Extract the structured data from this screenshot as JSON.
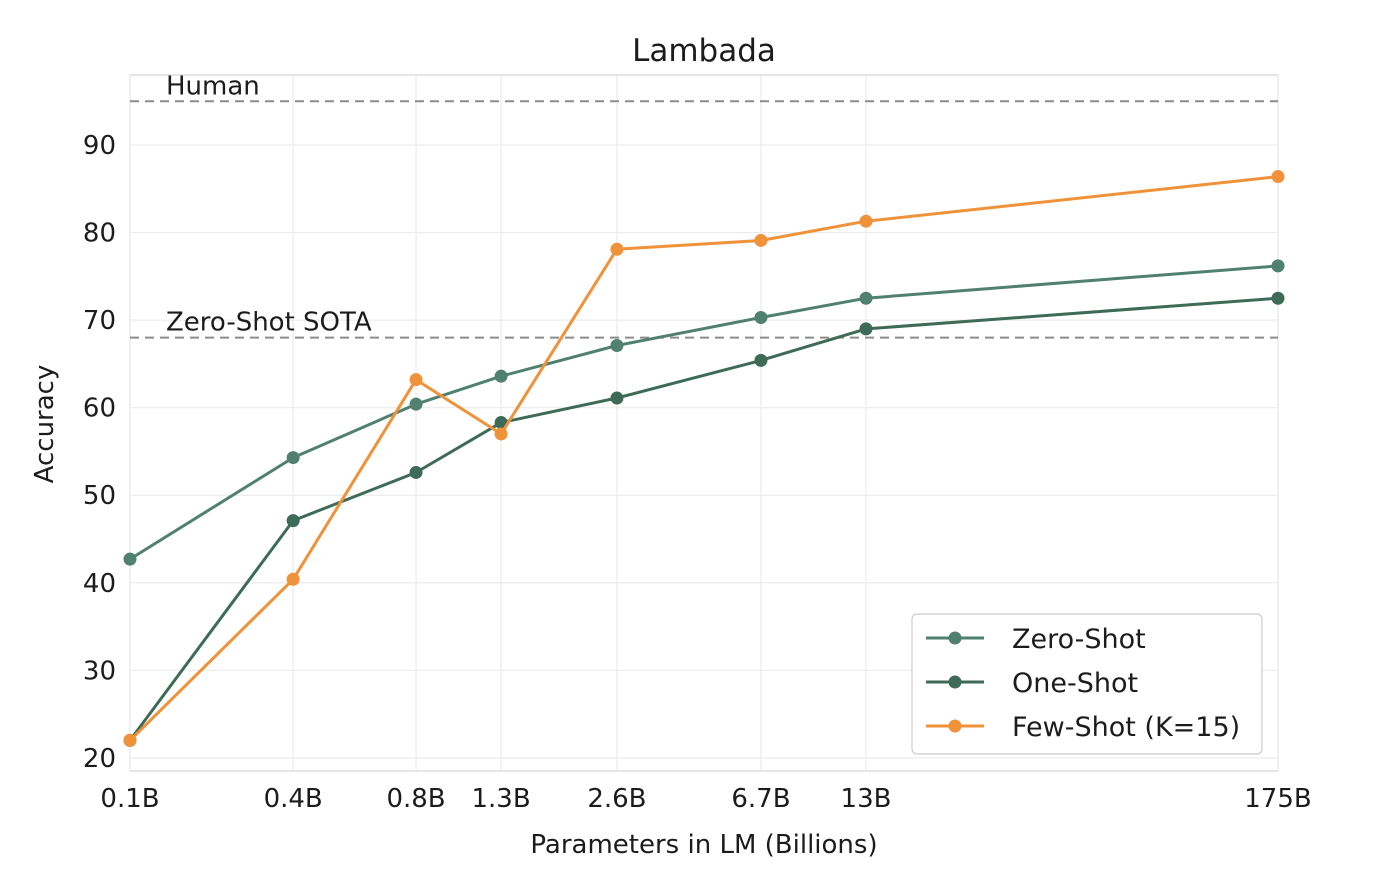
{
  "chart_data": {
    "type": "line",
    "title": "Lambada",
    "xlabel": "Parameters in LM (Billions)",
    "ylabel": "Accuracy",
    "categories": [
      "0.1B",
      "0.4B",
      "0.8B",
      "1.3B",
      "2.6B",
      "6.7B",
      "13B",
      "175B"
    ],
    "x_values": [
      0.125,
      0.35,
      0.76,
      1.3,
      2.7,
      6.7,
      13,
      175
    ],
    "x_scale": "log",
    "ylim": [
      18.5,
      98
    ],
    "yticks": [
      20,
      30,
      40,
      50,
      60,
      70,
      80,
      90
    ],
    "grid": true,
    "legend_position": "bottom-right",
    "series": [
      {
        "name": "Zero-Shot",
        "color": "#4f8070",
        "values": [
          42.7,
          54.3,
          60.4,
          63.6,
          67.1,
          70.3,
          72.5,
          76.2
        ]
      },
      {
        "name": "One-Shot",
        "color": "#3d6b58",
        "values": [
          22.0,
          47.1,
          52.6,
          58.3,
          61.1,
          65.4,
          69.0,
          72.5
        ]
      },
      {
        "name": "Few-Shot (K=15)",
        "color": "#ef9239",
        "values": [
          22.0,
          40.4,
          63.2,
          57.0,
          78.1,
          79.1,
          81.3,
          86.4
        ]
      }
    ],
    "reference_lines": [
      {
        "label": "Human",
        "value": 95
      },
      {
        "label": "Zero-Shot SOTA",
        "value": 68
      }
    ]
  }
}
